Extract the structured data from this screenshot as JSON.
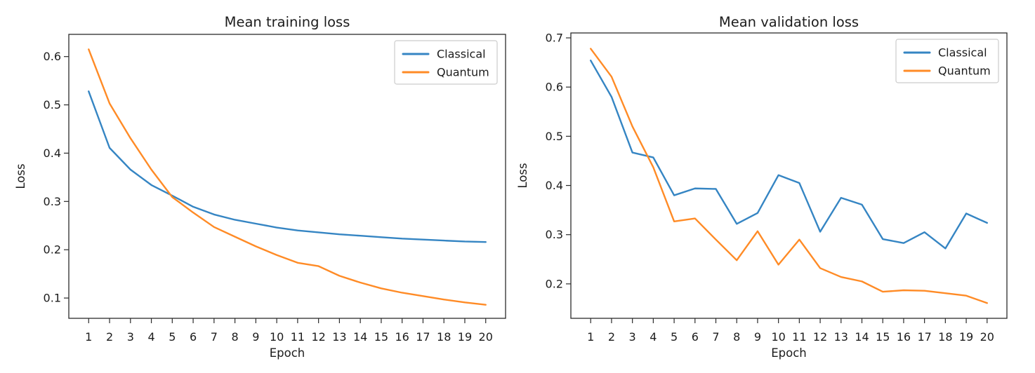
{
  "figure": {
    "background": "#ffffff",
    "text_color": "#1c1c1c",
    "frame_color": "#2b2b2b"
  },
  "chart_data": [
    {
      "type": "line",
      "title": "Mean training loss",
      "xlabel": "Epoch",
      "ylabel": "Loss",
      "x": [
        1,
        2,
        3,
        4,
        5,
        6,
        7,
        8,
        9,
        10,
        11,
        12,
        13,
        14,
        15,
        16,
        17,
        18,
        19,
        20
      ],
      "series": [
        {
          "name": "Classical",
          "color": "#3585c3",
          "values": [
            0.528,
            0.411,
            0.366,
            0.334,
            0.312,
            0.289,
            0.273,
            0.262,
            0.254,
            0.246,
            0.24,
            0.236,
            0.232,
            0.229,
            0.226,
            0.223,
            0.221,
            0.219,
            0.217,
            0.216
          ]
        },
        {
          "name": "Quantum",
          "color": "#ff8b26",
          "values": [
            0.615,
            0.503,
            0.431,
            0.366,
            0.309,
            0.277,
            0.247,
            0.227,
            0.207,
            0.189,
            0.173,
            0.166,
            0.146,
            0.132,
            0.12,
            0.111,
            0.104,
            0.097,
            0.091,
            0.086
          ]
        }
      ],
      "xlim": [
        0.05,
        20.95
      ],
      "ylim": [
        0.058,
        0.646
      ],
      "xticks": [
        1,
        2,
        3,
        4,
        5,
        6,
        7,
        8,
        9,
        10,
        11,
        12,
        13,
        14,
        15,
        16,
        17,
        18,
        19,
        20
      ],
      "yticks": [
        0.1,
        0.2,
        0.3,
        0.4,
        0.5,
        0.6
      ],
      "grid": false,
      "legend": {
        "position": "upper right",
        "entries": [
          "Classical",
          "Quantum"
        ]
      }
    },
    {
      "type": "line",
      "title": "Mean validation loss",
      "xlabel": "Epoch",
      "ylabel": "Loss",
      "x": [
        1,
        2,
        3,
        4,
        5,
        6,
        7,
        8,
        9,
        10,
        11,
        12,
        13,
        14,
        15,
        16,
        17,
        18,
        19,
        20
      ],
      "series": [
        {
          "name": "Classical",
          "color": "#3585c3",
          "values": [
            0.654,
            0.58,
            0.467,
            0.457,
            0.38,
            0.394,
            0.393,
            0.322,
            0.344,
            0.421,
            0.405,
            0.306,
            0.375,
            0.361,
            0.291,
            0.283,
            0.305,
            0.272,
            0.343,
            0.324
          ]
        },
        {
          "name": "Quantum",
          "color": "#ff8b26",
          "values": [
            0.678,
            0.621,
            0.52,
            0.437,
            0.327,
            0.333,
            0.29,
            0.248,
            0.307,
            0.239,
            0.29,
            0.232,
            0.214,
            0.205,
            0.184,
            0.187,
            0.186,
            0.181,
            0.176,
            0.161
          ]
        }
      ],
      "xlim": [
        0.05,
        20.95
      ],
      "ylim": [
        0.13,
        0.71
      ],
      "xticks": [
        1,
        2,
        3,
        4,
        5,
        6,
        7,
        8,
        9,
        10,
        11,
        12,
        13,
        14,
        15,
        16,
        17,
        18,
        19,
        20
      ],
      "yticks": [
        0.2,
        0.3,
        0.4,
        0.5,
        0.6,
        0.7
      ],
      "grid": false,
      "legend": {
        "position": "upper right",
        "entries": [
          "Classical",
          "Quantum"
        ]
      }
    }
  ]
}
